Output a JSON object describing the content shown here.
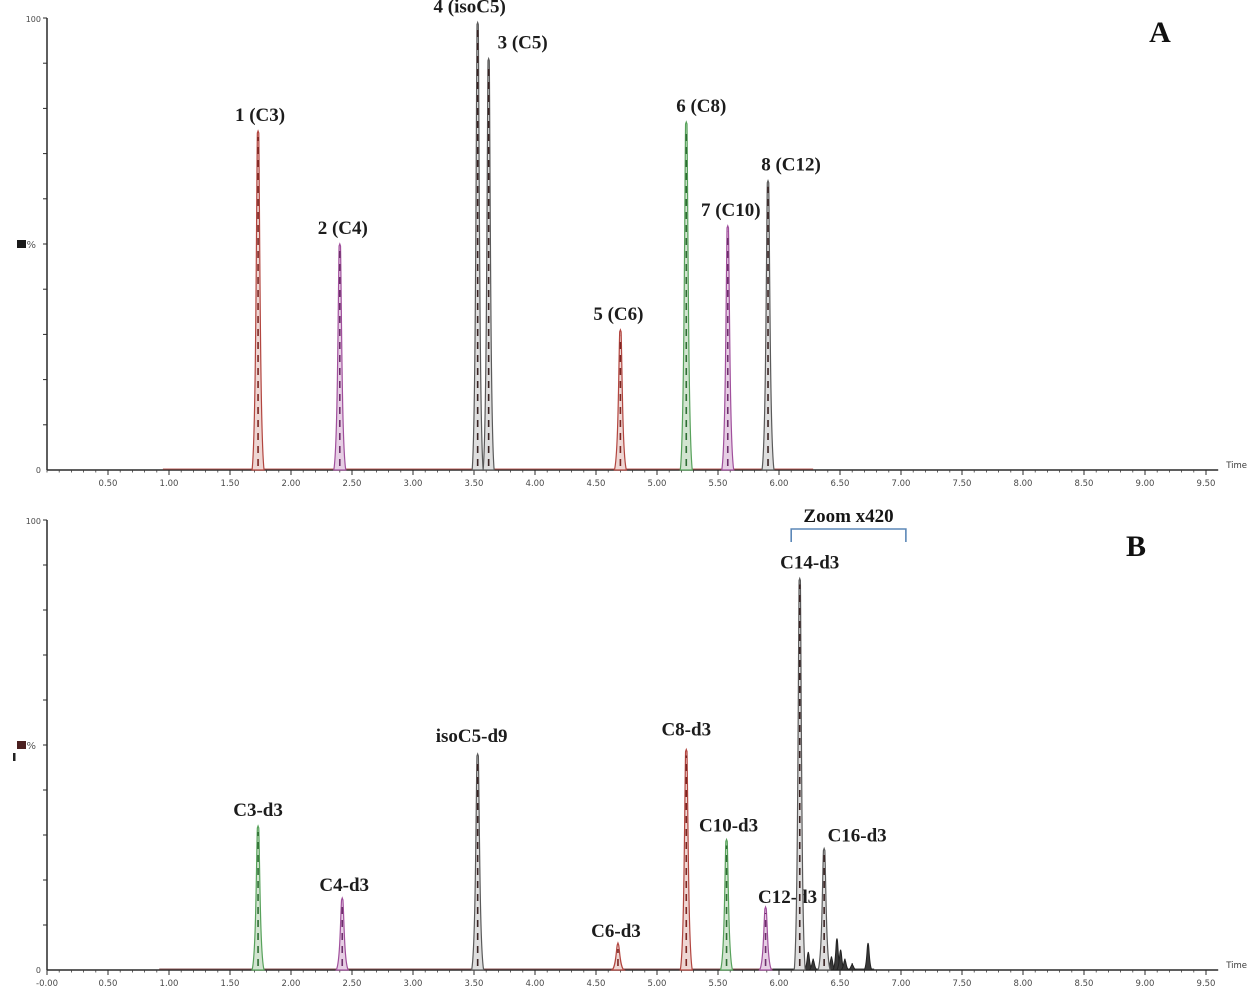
{
  "figure": {
    "xlabel": "Time",
    "ylabel": "%"
  },
  "colors": {
    "red": {
      "stroke": "#b2453f",
      "fill": "#eed6d3",
      "core": "#7c2622"
    },
    "magenta": {
      "stroke": "#a04f9c",
      "fill": "#e6cee4",
      "core": "#6d2f6b"
    },
    "green": {
      "stroke": "#57a25b",
      "fill": "#d2e4d0",
      "core": "#2e6e33"
    },
    "dark": {
      "stroke": "#5a5a5a",
      "fill": "#dedede",
      "core": "#3a2424"
    },
    "bracket": "#5b87b7",
    "axis": "#2a2a2a"
  },
  "chart_data": [
    {
      "type": "line",
      "panel_label": "A",
      "xlabel": "Time",
      "ylabel": "%",
      "y_top_label": "100",
      "y_bottom_label": "0",
      "xlim": [
        0,
        9.8
      ],
      "ylim": [
        0,
        100
      ],
      "grid": false,
      "x_tick_labels": [
        "0.50",
        "1.00",
        "1.50",
        "2.00",
        "2.50",
        "3.00",
        "3.50",
        "4.00",
        "4.50",
        "5.00",
        "5.50",
        "6.00",
        "6.50",
        "7.00",
        "7.50",
        "8.00",
        "8.50",
        "9.00",
        "9.50"
      ],
      "peaks": [
        {
          "label": "1 (C3)",
          "time": 1.73,
          "height_pct": 75,
          "color": "red",
          "label_dx": 2,
          "label_dy": 0
        },
        {
          "label": "2 (C4)",
          "time": 2.4,
          "height_pct": 50,
          "color": "magenta",
          "label_dx": 3,
          "label_dy": 0
        },
        {
          "label": "4 (isoC5)",
          "time": 3.53,
          "height_pct": 99,
          "color": "dark",
          "label_dx": -8,
          "label_dy": 0
        },
        {
          "label": "3 (C5)",
          "time": 3.62,
          "height_pct": 91,
          "color": "dark",
          "label_dx": 34,
          "label_dy": 0
        },
        {
          "label": "5 (C6)",
          "time": 4.7,
          "height_pct": 31,
          "color": "red",
          "label_dx": -2,
          "label_dy": 0
        },
        {
          "label": "6 (C8)",
          "time": 5.24,
          "height_pct": 77,
          "color": "green",
          "label_dx": 15,
          "label_dy": 0
        },
        {
          "label": "7 (C10)",
          "time": 5.58,
          "height_pct": 54,
          "color": "magenta",
          "label_dx": 3,
          "label_dy": 0
        },
        {
          "label": "8 (C12)",
          "time": 5.91,
          "height_pct": 64,
          "color": "dark",
          "label_dx": 23,
          "label_dy": 0
        }
      ],
      "noise": [],
      "baseline_traces": [
        {
          "color": "#b2453f",
          "from": 0.95,
          "to": 6.28
        }
      ]
    },
    {
      "type": "line",
      "panel_label": "B",
      "xlabel": "Time",
      "ylabel": "%",
      "y_top_label": "100",
      "y_bottom_label": "0",
      "xlim": [
        0,
        9.8
      ],
      "ylim": [
        0,
        100
      ],
      "grid": false,
      "x_tick_labels": [
        "-0.00",
        "0.50",
        "1.00",
        "1.50",
        "2.00",
        "2.50",
        "3.00",
        "3.50",
        "4.00",
        "4.50",
        "5.00",
        "5.50",
        "6.00",
        "6.50",
        "7.00",
        "7.50",
        "8.00",
        "8.50",
        "9.00",
        "9.50"
      ],
      "peaks": [
        {
          "label": "C3-d3",
          "time": 1.73,
          "height_pct": 32,
          "color": "green",
          "label_dx": 0,
          "label_dy": 0
        },
        {
          "label": "C4-d3",
          "time": 2.42,
          "height_pct": 16,
          "color": "magenta",
          "label_dx": 2,
          "label_dy": 3
        },
        {
          "label": "isoC5-d9",
          "time": 3.53,
          "height_pct": 48,
          "color": "dark",
          "label_dx": -6,
          "label_dy": -2
        },
        {
          "label": "C6-d3",
          "time": 4.68,
          "height_pct": 6,
          "color": "red",
          "label_dx": -2,
          "label_dy": 4
        },
        {
          "label": "C8-d3",
          "time": 5.24,
          "height_pct": 49,
          "color": "red",
          "label_dx": 0,
          "label_dy": -4
        },
        {
          "label": "C10-d3",
          "time": 5.57,
          "height_pct": 29,
          "color": "green",
          "label_dx": 2,
          "label_dy": 2
        },
        {
          "label": "C12-d3",
          "time": 5.89,
          "height_pct": 14,
          "color": "magenta",
          "label_dx": 22,
          "label_dy": 6
        },
        {
          "label": "C14-d3",
          "time": 6.17,
          "height_pct": 87,
          "color": "dark",
          "label_dx": 10,
          "label_dy": 0
        },
        {
          "label": "C16-d3",
          "time": 6.37,
          "height_pct": 27,
          "color": "dark",
          "label_dx": 33,
          "label_dy": 3
        }
      ],
      "noise": [
        {
          "time": 6.24,
          "height_pct": 4
        },
        {
          "time": 6.28,
          "height_pct": 2.5
        },
        {
          "time": 6.43,
          "height_pct": 3
        },
        {
          "time": 6.475,
          "height_pct": 7
        },
        {
          "time": 6.505,
          "height_pct": 4.5
        },
        {
          "time": 6.54,
          "height_pct": 2.5
        },
        {
          "time": 6.6,
          "height_pct": 1.5
        },
        {
          "time": 6.73,
          "height_pct": 6
        }
      ],
      "baseline_traces": [
        {
          "color": "#7a3b3b",
          "from": 0.92,
          "to": 5.95
        },
        {
          "color": "#222222",
          "from": 5.95,
          "to": 6.78
        }
      ],
      "annotation": {
        "text": "Zoom x420",
        "bracket_from": 6.1,
        "bracket_to": 7.04
      }
    }
  ]
}
